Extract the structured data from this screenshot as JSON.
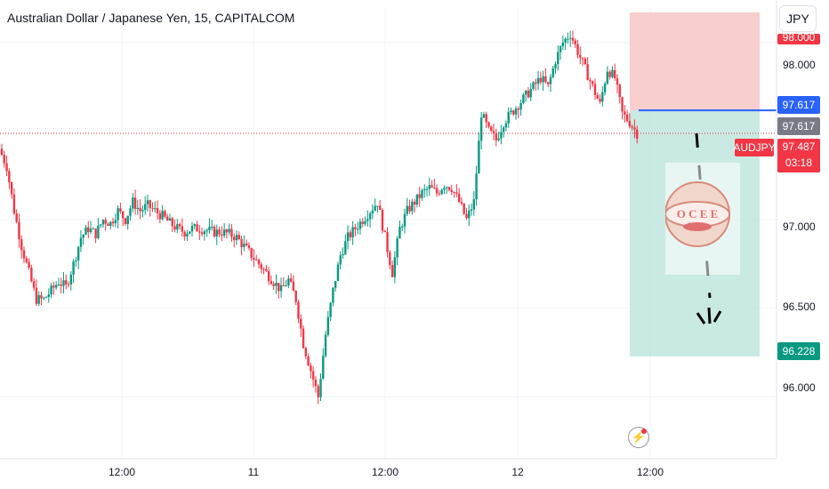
{
  "header": {
    "title": "Australian Dollar / Japanese Yen, 15, CAPITALCOM",
    "currency_button": "JPY"
  },
  "price_axis": {
    "ticks": [
      "98.000",
      "97.000",
      "96.500",
      "96.000"
    ],
    "top_tag": "98.000",
    "blue_tag": "97.617",
    "gray_tag": "97.617",
    "symbol_tag": "AUDJPY",
    "last_price": "97.487",
    "countdown": "03:18",
    "target_tag": "96.228"
  },
  "time_axis": {
    "ticks": [
      "12:00",
      "11",
      "12:00",
      "12",
      "12:00"
    ]
  },
  "watermark": {
    "letters": [
      "O",
      "C",
      "E",
      "E"
    ]
  },
  "colors": {
    "up": "#089981",
    "down": "#f23645",
    "stop_zone": "#f7c5c5",
    "target_zone": "#b7e3d8",
    "entry_line": "#2962ff"
  },
  "chart_data": {
    "type": "candlestick",
    "symbol": "AUDJPY",
    "interval": "15",
    "ylim": [
      95.65,
      98.2
    ],
    "x_labels": [
      "12:00",
      "11",
      "12:00",
      "12",
      "12:00"
    ],
    "y_ticks": [
      98.0,
      97.0,
      96.5,
      96.0
    ],
    "last_price": 97.487,
    "position": {
      "side": "short",
      "entry": 97.617,
      "stop": 98.17,
      "target": 96.228
    },
    "close_path": [
      97.4,
      97.3,
      97.05,
      96.85,
      96.7,
      96.55,
      96.55,
      96.6,
      96.65,
      96.62,
      96.75,
      96.9,
      96.95,
      96.92,
      97.0,
      96.98,
      97.05,
      97.0,
      97.1,
      97.05,
      97.08,
      97.05,
      97.02,
      96.98,
      96.95,
      96.93,
      96.95,
      96.95,
      96.94,
      96.93,
      96.93,
      96.92,
      96.9,
      96.85,
      96.8,
      96.75,
      96.7,
      96.65,
      96.6,
      96.66,
      96.55,
      96.3,
      96.15,
      96.0,
      96.35,
      96.6,
      96.8,
      96.9,
      96.95,
      97.0,
      97.05,
      97.1,
      96.9,
      96.7,
      96.95,
      97.05,
      97.1,
      97.15,
      97.18,
      97.15,
      97.2,
      97.18,
      97.1,
      97.0,
      97.1,
      97.6,
      97.5,
      97.45,
      97.55,
      97.6,
      97.65,
      97.7,
      97.75,
      97.8,
      97.75,
      97.9,
      98.0,
      98.05,
      97.95,
      97.85,
      97.75,
      97.65,
      97.85,
      97.8,
      97.6,
      97.55,
      97.487
    ]
  }
}
